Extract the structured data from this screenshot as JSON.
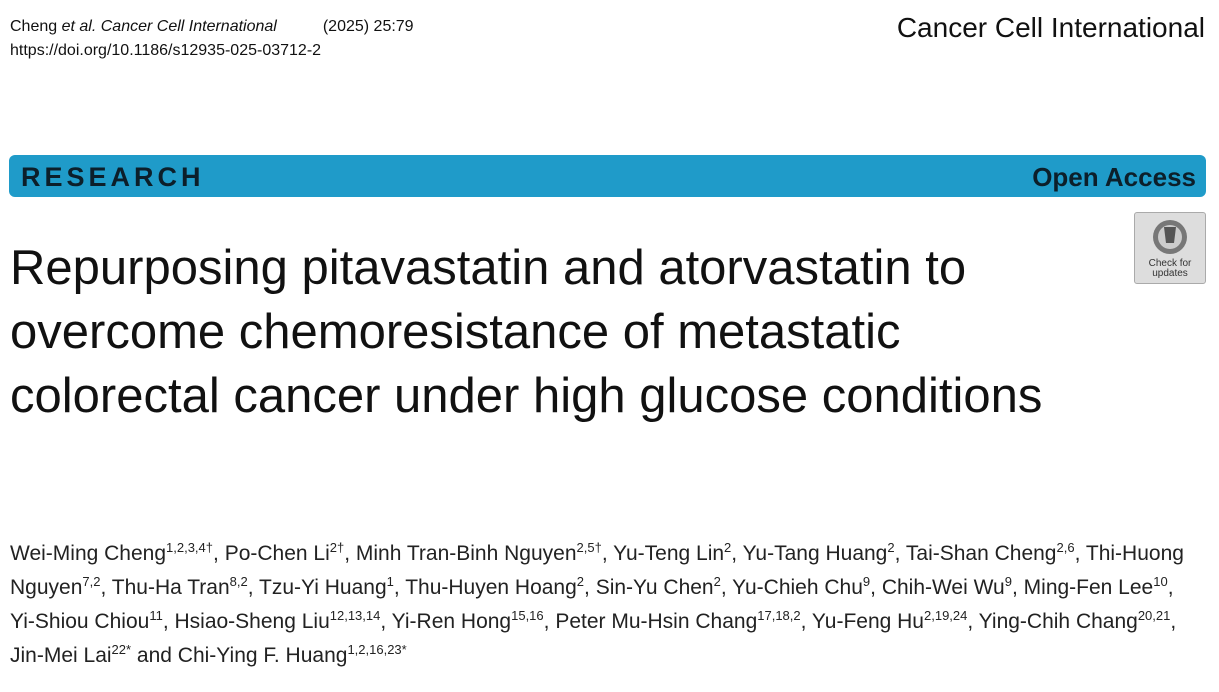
{
  "header": {
    "citation": {
      "author": "Cheng",
      "etal": "et al.",
      "journal": "Cancer Cell International",
      "issue": "(2025) 25:79"
    },
    "doi": "https://doi.org/10.1186/s12935-025-03712-2",
    "journal_name": "Cancer Cell International"
  },
  "banner": {
    "label": "RESEARCH",
    "access": "Open Access"
  },
  "badge": {
    "line1": "Check for",
    "line2": "updates"
  },
  "title": "Repurposing pitavastatin and atorvastatin to overcome chemoresistance of metastatic colorectal cancer under high glucose conditions",
  "authors": [
    {
      "name": "Wei-Ming Cheng",
      "affil": "1,2,3,4†",
      "after": ", "
    },
    {
      "name": "Po-Chen Li",
      "affil": "2†",
      "after": ", "
    },
    {
      "name": "Minh Tran-Binh Nguyen",
      "affil": "2,5†",
      "after": ", "
    },
    {
      "name": "Yu-Teng Lin",
      "affil": "2",
      "after": ", "
    },
    {
      "name": "Yu-Tang Huang",
      "affil": "2",
      "after": ", "
    },
    {
      "name": "Tai-Shan Cheng",
      "affil": "2,6",
      "after": ", "
    },
    {
      "name": "Thi-Huong Nguyen",
      "affil": "7,2",
      "after": ", "
    },
    {
      "name": "Thu-Ha Tran",
      "affil": "8,2",
      "after": ", "
    },
    {
      "name": "Tzu-Yi Huang",
      "affil": "1",
      "after": ", "
    },
    {
      "name": "Thu-Huyen Hoang",
      "affil": "2",
      "after": ", "
    },
    {
      "name": "Sin-Yu Chen",
      "affil": "2",
      "after": ", "
    },
    {
      "name": "Yu-Chieh Chu",
      "affil": "9",
      "after": ", "
    },
    {
      "name": "Chih-Wei Wu",
      "affil": "9",
      "after": ", "
    },
    {
      "name": "Ming-Fen Lee",
      "affil": "10",
      "after": ", "
    },
    {
      "name": "Yi-Shiou Chiou",
      "affil": "11",
      "after": ", "
    },
    {
      "name": "Hsiao-Sheng Liu",
      "affil": "12,13,14",
      "after": ", "
    },
    {
      "name": "Yi-Ren Hong",
      "affil": "15,16",
      "after": ", "
    },
    {
      "name": "Peter Mu-Hsin Chang",
      "affil": "17,18,2",
      "after": ", "
    },
    {
      "name": "Yu-Feng Hu",
      "affil": "2,19,24",
      "after": ", "
    },
    {
      "name": "Ying-Chih Chang",
      "affil": "20,21",
      "after": ", "
    },
    {
      "name": "Jin-Mei Lai",
      "affil": "22*",
      "after": " and "
    },
    {
      "name": "Chi-Ying F. Huang",
      "affil": "1,2,16,23*"
    }
  ]
}
